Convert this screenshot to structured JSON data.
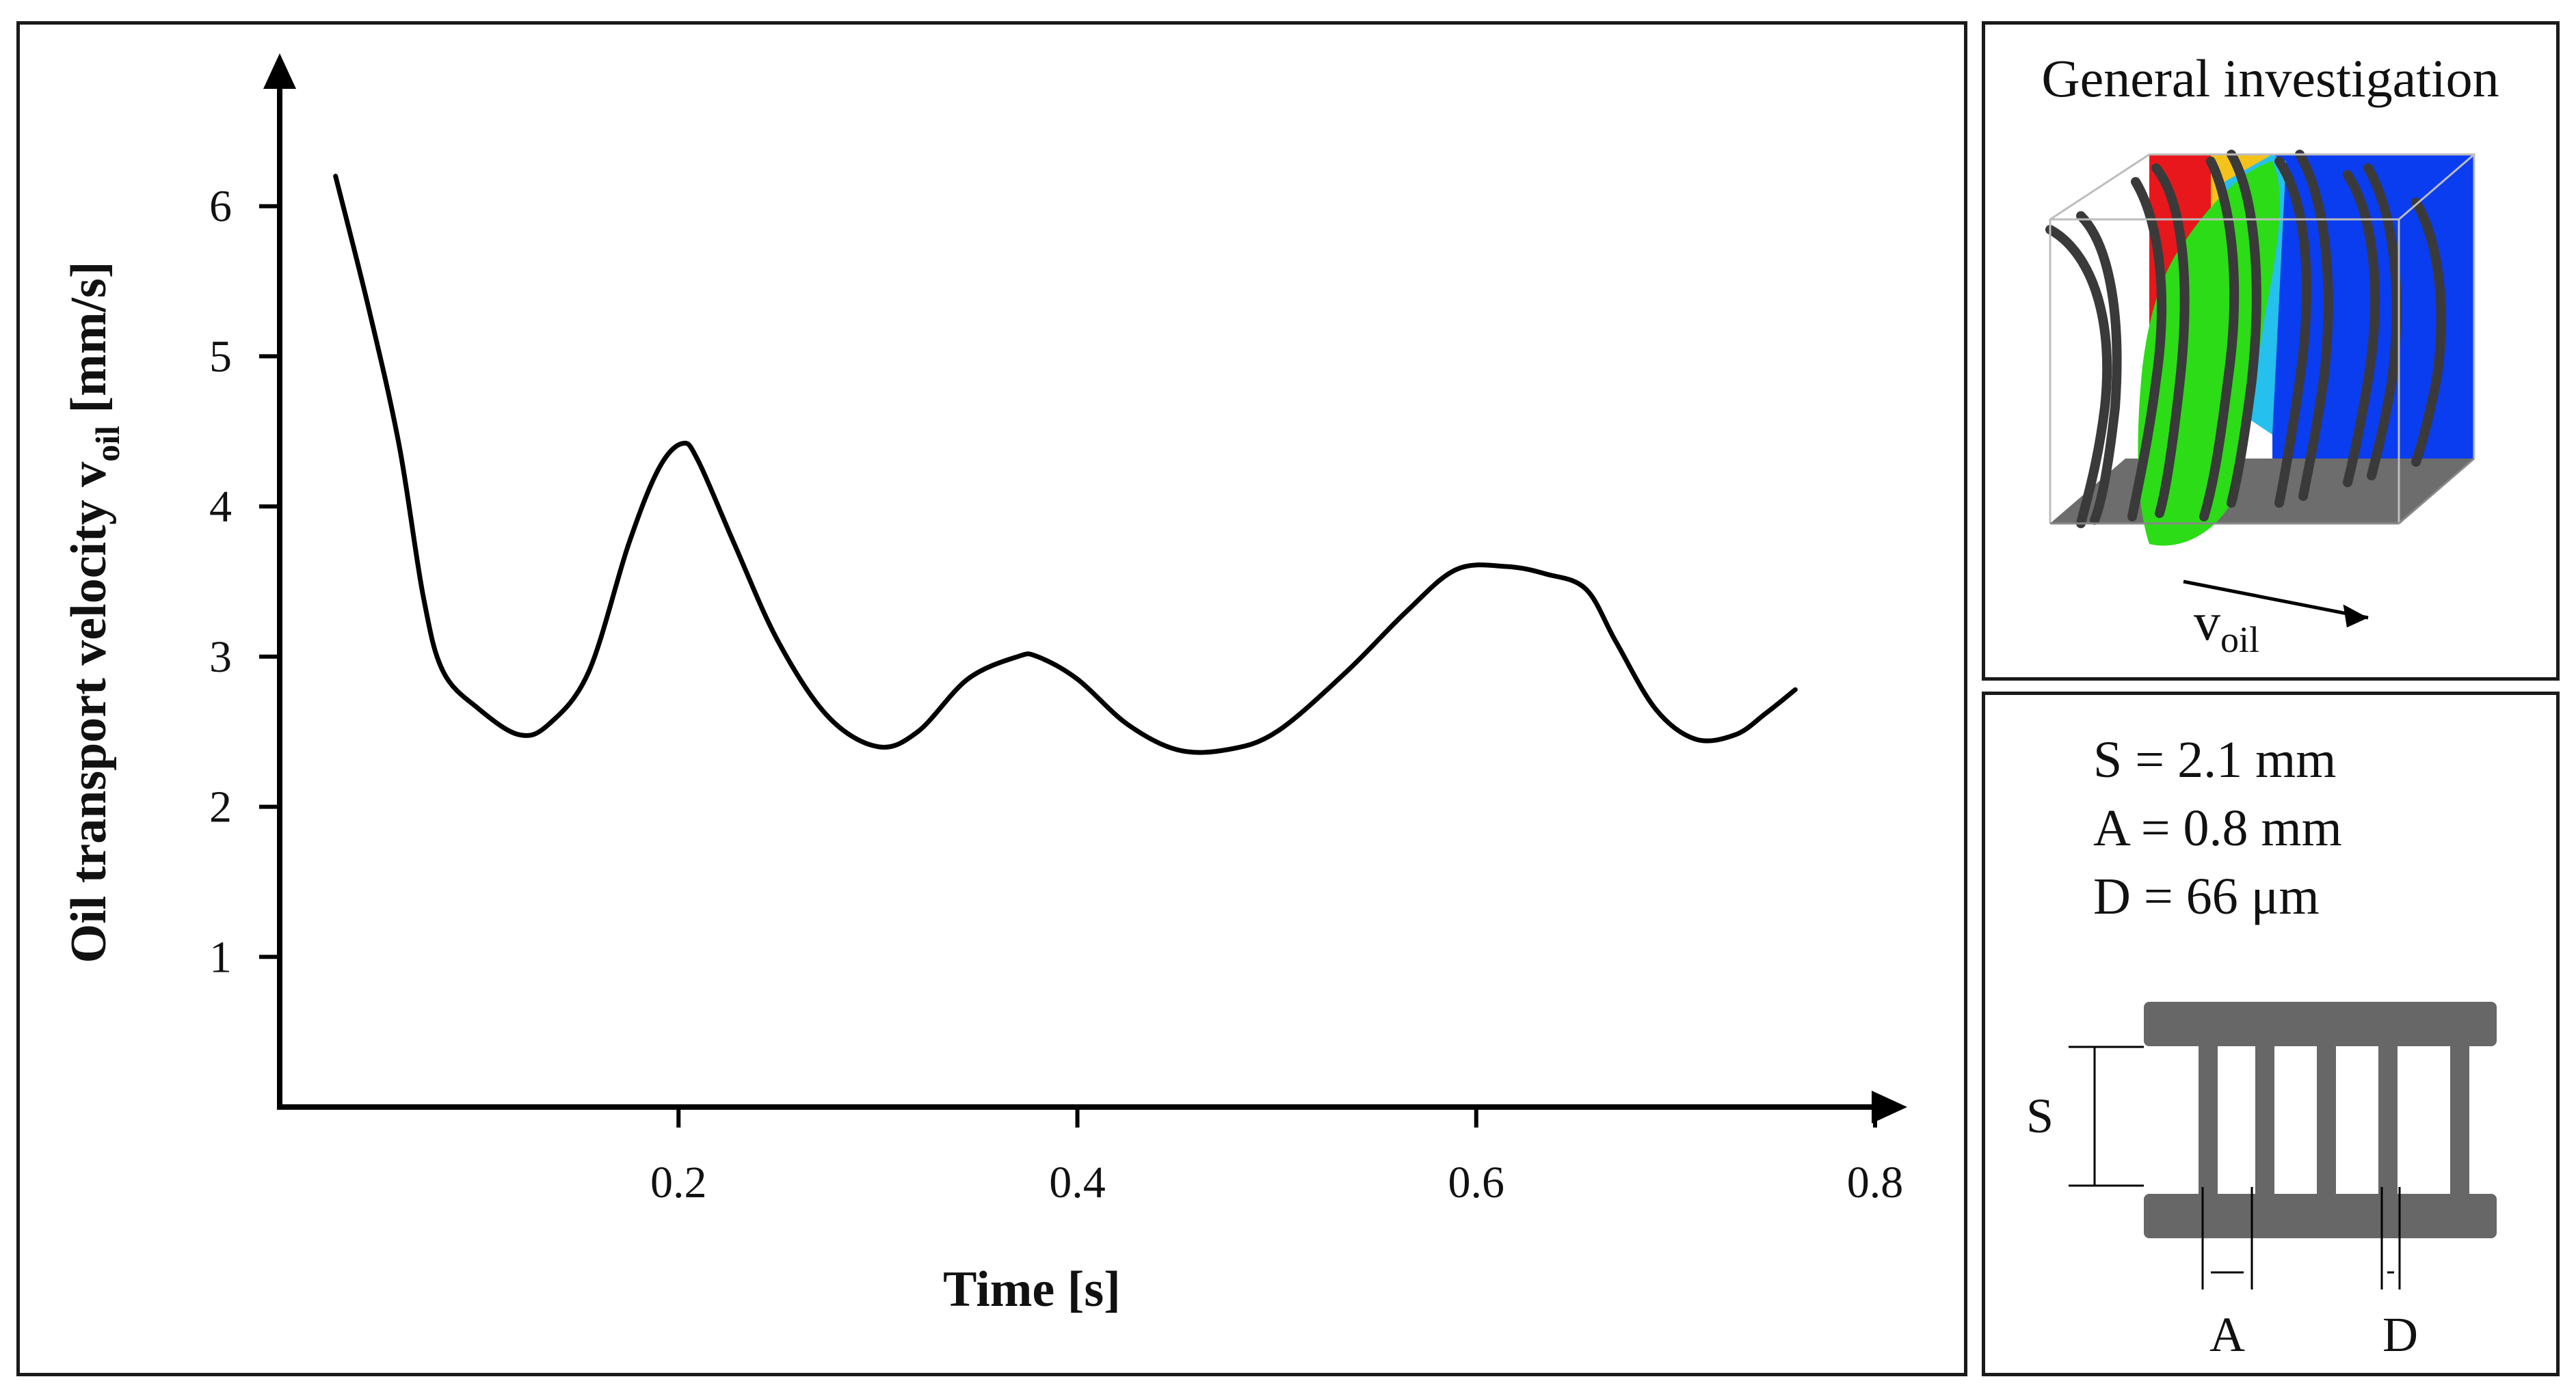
{
  "chart_data": {
    "type": "line",
    "title": "",
    "xlabel": "Time [s]",
    "ylabel_main": "Oil transport velocity v",
    "ylabel_sub": "oil",
    "ylabel_unit": " [mm/s]",
    "xlim": [
      0,
      0.8
    ],
    "ylim": [
      0,
      7
    ],
    "x_ticks": [
      0.2,
      0.4,
      0.6,
      0.8
    ],
    "x_tick_labels": [
      "0.2",
      "0.4",
      "0.6",
      "0.8"
    ],
    "y_ticks": [
      1,
      2,
      3,
      4,
      5,
      6
    ],
    "y_tick_labels": [
      "1",
      "2",
      "3",
      "4",
      "5",
      "6"
    ],
    "grid": false,
    "series": [
      {
        "x": [
          0.028,
          0.045,
          0.06,
          0.072,
          0.082,
          0.1,
          0.12,
          0.135,
          0.155,
          0.175,
          0.19,
          0.202,
          0.21,
          0.228,
          0.25,
          0.275,
          0.3,
          0.32,
          0.345,
          0.37,
          0.38,
          0.4,
          0.425,
          0.45,
          0.475,
          0.5,
          0.535,
          0.565,
          0.59,
          0.615,
          0.635,
          0.655,
          0.67,
          0.69,
          0.71,
          0.73,
          0.745,
          0.76
        ],
        "y": [
          6.2,
          5.3,
          4.4,
          3.4,
          2.9,
          2.65,
          2.48,
          2.55,
          2.9,
          3.75,
          4.25,
          4.42,
          4.3,
          3.75,
          3.1,
          2.6,
          2.4,
          2.5,
          2.85,
          3.0,
          3.0,
          2.85,
          2.55,
          2.38,
          2.38,
          2.5,
          2.9,
          3.3,
          3.58,
          3.6,
          3.55,
          3.45,
          3.1,
          2.65,
          2.45,
          2.48,
          2.62,
          2.78
        ]
      }
    ]
  },
  "simulation_panel": {
    "title": "General investigation",
    "flow_label_main": "v",
    "flow_label_sub": "oil",
    "colors": {
      "hot": "#e8171b",
      "mid": "#f5c21b",
      "oil": "#2bdc17",
      "cold": "#0a3cf0",
      "floor": "#6d6d6d",
      "wire": "#3a3a3a"
    }
  },
  "geometry_panel": {
    "params": [
      "S = 2.1 mm",
      "A = 0.8 mm",
      "D = 66 μm"
    ],
    "labels": {
      "s": "S",
      "a": "A",
      "d": "D"
    },
    "colors": {
      "structure": "#676767"
    }
  }
}
